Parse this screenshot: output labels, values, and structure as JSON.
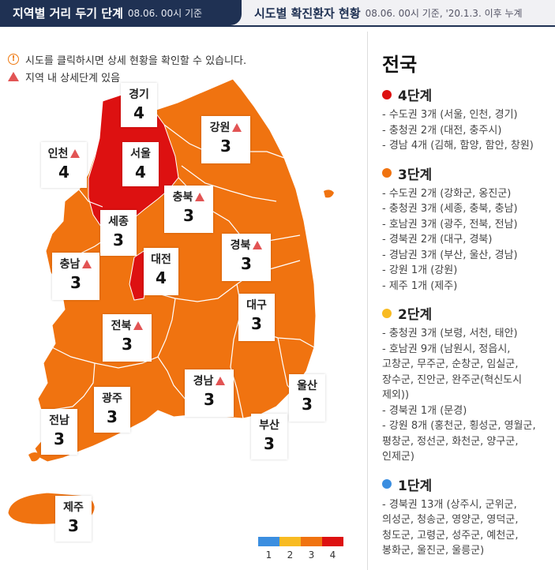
{
  "tabs": [
    {
      "title": "지역별 거리 두기 단계",
      "subtitle": "08.06. 00시 기준"
    },
    {
      "title": "시도별 확진환자 현황",
      "subtitle": "08.06. 00시 기준, '20.1.3. 이후 누계"
    }
  ],
  "notes": [
    "시도를 클릭하시면 상세 현황을 확인할 수 있습니다.",
    "지역 내 상세단계 있음"
  ],
  "colors": {
    "level4": "#dd1111",
    "level3": "#f07310",
    "level2": "#f8bb22",
    "level1": "#3b8ee0",
    "header": "#1f3153"
  },
  "regions": [
    {
      "name": "경기",
      "level": "4",
      "warning": false
    },
    {
      "name": "강원",
      "level": "3",
      "warning": true
    },
    {
      "name": "인천",
      "level": "4",
      "warning": true
    },
    {
      "name": "서울",
      "level": "4",
      "warning": false
    },
    {
      "name": "충북",
      "level": "3",
      "warning": true
    },
    {
      "name": "세종",
      "level": "3",
      "warning": false
    },
    {
      "name": "경북",
      "level": "3",
      "warning": true
    },
    {
      "name": "충남",
      "level": "3",
      "warning": true
    },
    {
      "name": "대전",
      "level": "4",
      "warning": false
    },
    {
      "name": "대구",
      "level": "3",
      "warning": false
    },
    {
      "name": "전북",
      "level": "3",
      "warning": true
    },
    {
      "name": "경남",
      "level": "3",
      "warning": true
    },
    {
      "name": "울산",
      "level": "3",
      "warning": false
    },
    {
      "name": "광주",
      "level": "3",
      "warning": false
    },
    {
      "name": "전남",
      "level": "3",
      "warning": false
    },
    {
      "name": "부산",
      "level": "3",
      "warning": false
    },
    {
      "name": "제주",
      "level": "3",
      "warning": false
    }
  ],
  "legend": [
    "1",
    "2",
    "3",
    "4"
  ],
  "sidebar": {
    "title": "전국",
    "groups": [
      {
        "label": "4단계",
        "items": [
          "- 수도권 3개 (서울, 인천, 경기)",
          "- 충청권 2개 (대전, 충주시)",
          "- 경남 4개 (김해, 함양, 함안, 창원)"
        ]
      },
      {
        "label": "3단계",
        "items": [
          "- 수도권 2개 (강화군, 옹진군)",
          "- 충청권 3개 (세종, 충북, 충남)",
          "- 호남권 3개 (광주, 전북, 전남)",
          "- 경북권 2개 (대구, 경북)",
          "- 경남권 3개 (부산, 울산, 경남)",
          "- 강원 1개 (강원)",
          "- 제주 1개 (제주)"
        ]
      },
      {
        "label": "2단계",
        "items": [
          "- 충청권 3개 (보령, 서천, 태안)",
          "- 호남권 9개 (남원시, 정읍시,",
          "고창군, 무주군, 순창군, 임실군,",
          "장수군, 진안군, 완주군(혁신도시",
          "제외))",
          "- 경북권 1개 (문경)",
          "- 강원 8개 (홍천군, 횡성군, 영월군,",
          "평창군, 정선군, 화천군, 양구군,",
          "인제군)"
        ]
      },
      {
        "label": "1단계",
        "items": [
          "- 경북권 13개 (상주시, 군위군,",
          "의성군, 청송군, 영양군, 영덕군,",
          "청도군, 고령군, 성주군, 예천군,",
          "봉화군, 울진군, 울릉군)"
        ]
      }
    ]
  }
}
